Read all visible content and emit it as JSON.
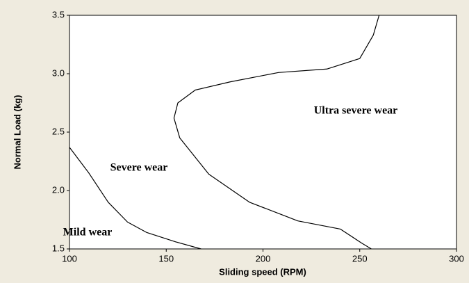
{
  "chart_data": {
    "type": "line",
    "x_label": "Sliding speed (RPM)",
    "y_label": "Normal Load (kg)",
    "xlim": [
      100,
      300
    ],
    "xticks": [
      100,
      150,
      200,
      250,
      300
    ],
    "ylim": [
      1.5,
      3.5
    ],
    "yticks": [
      1.5,
      {
        "value": 2,
        "label": "2.0"
      },
      2.5,
      {
        "value": 3,
        "label": "3.0"
      },
      3.5
    ],
    "grid": false,
    "series": [
      {
        "color": "#000000",
        "x": [
          100,
          110,
          120,
          130,
          140,
          155,
          168
        ],
        "values": [
          2.37,
          2.15,
          1.9,
          1.73,
          1.64,
          1.56,
          1.5
        ]
      },
      {
        "color": "#000000",
        "x": [
          260,
          257,
          250,
          233,
          208,
          183,
          165,
          156,
          154,
          157,
          172,
          193,
          218,
          240,
          251,
          256
        ],
        "values": [
          3.5,
          3.33,
          3.13,
          3.04,
          3.01,
          2.93,
          2.86,
          2.75,
          2.62,
          2.45,
          2.14,
          1.9,
          1.74,
          1.67,
          1.55,
          1.5
        ]
      }
    ],
    "annotations": [
      "Ultra severe wear",
      "Severe wear",
      "Mild wear"
    ]
  }
}
